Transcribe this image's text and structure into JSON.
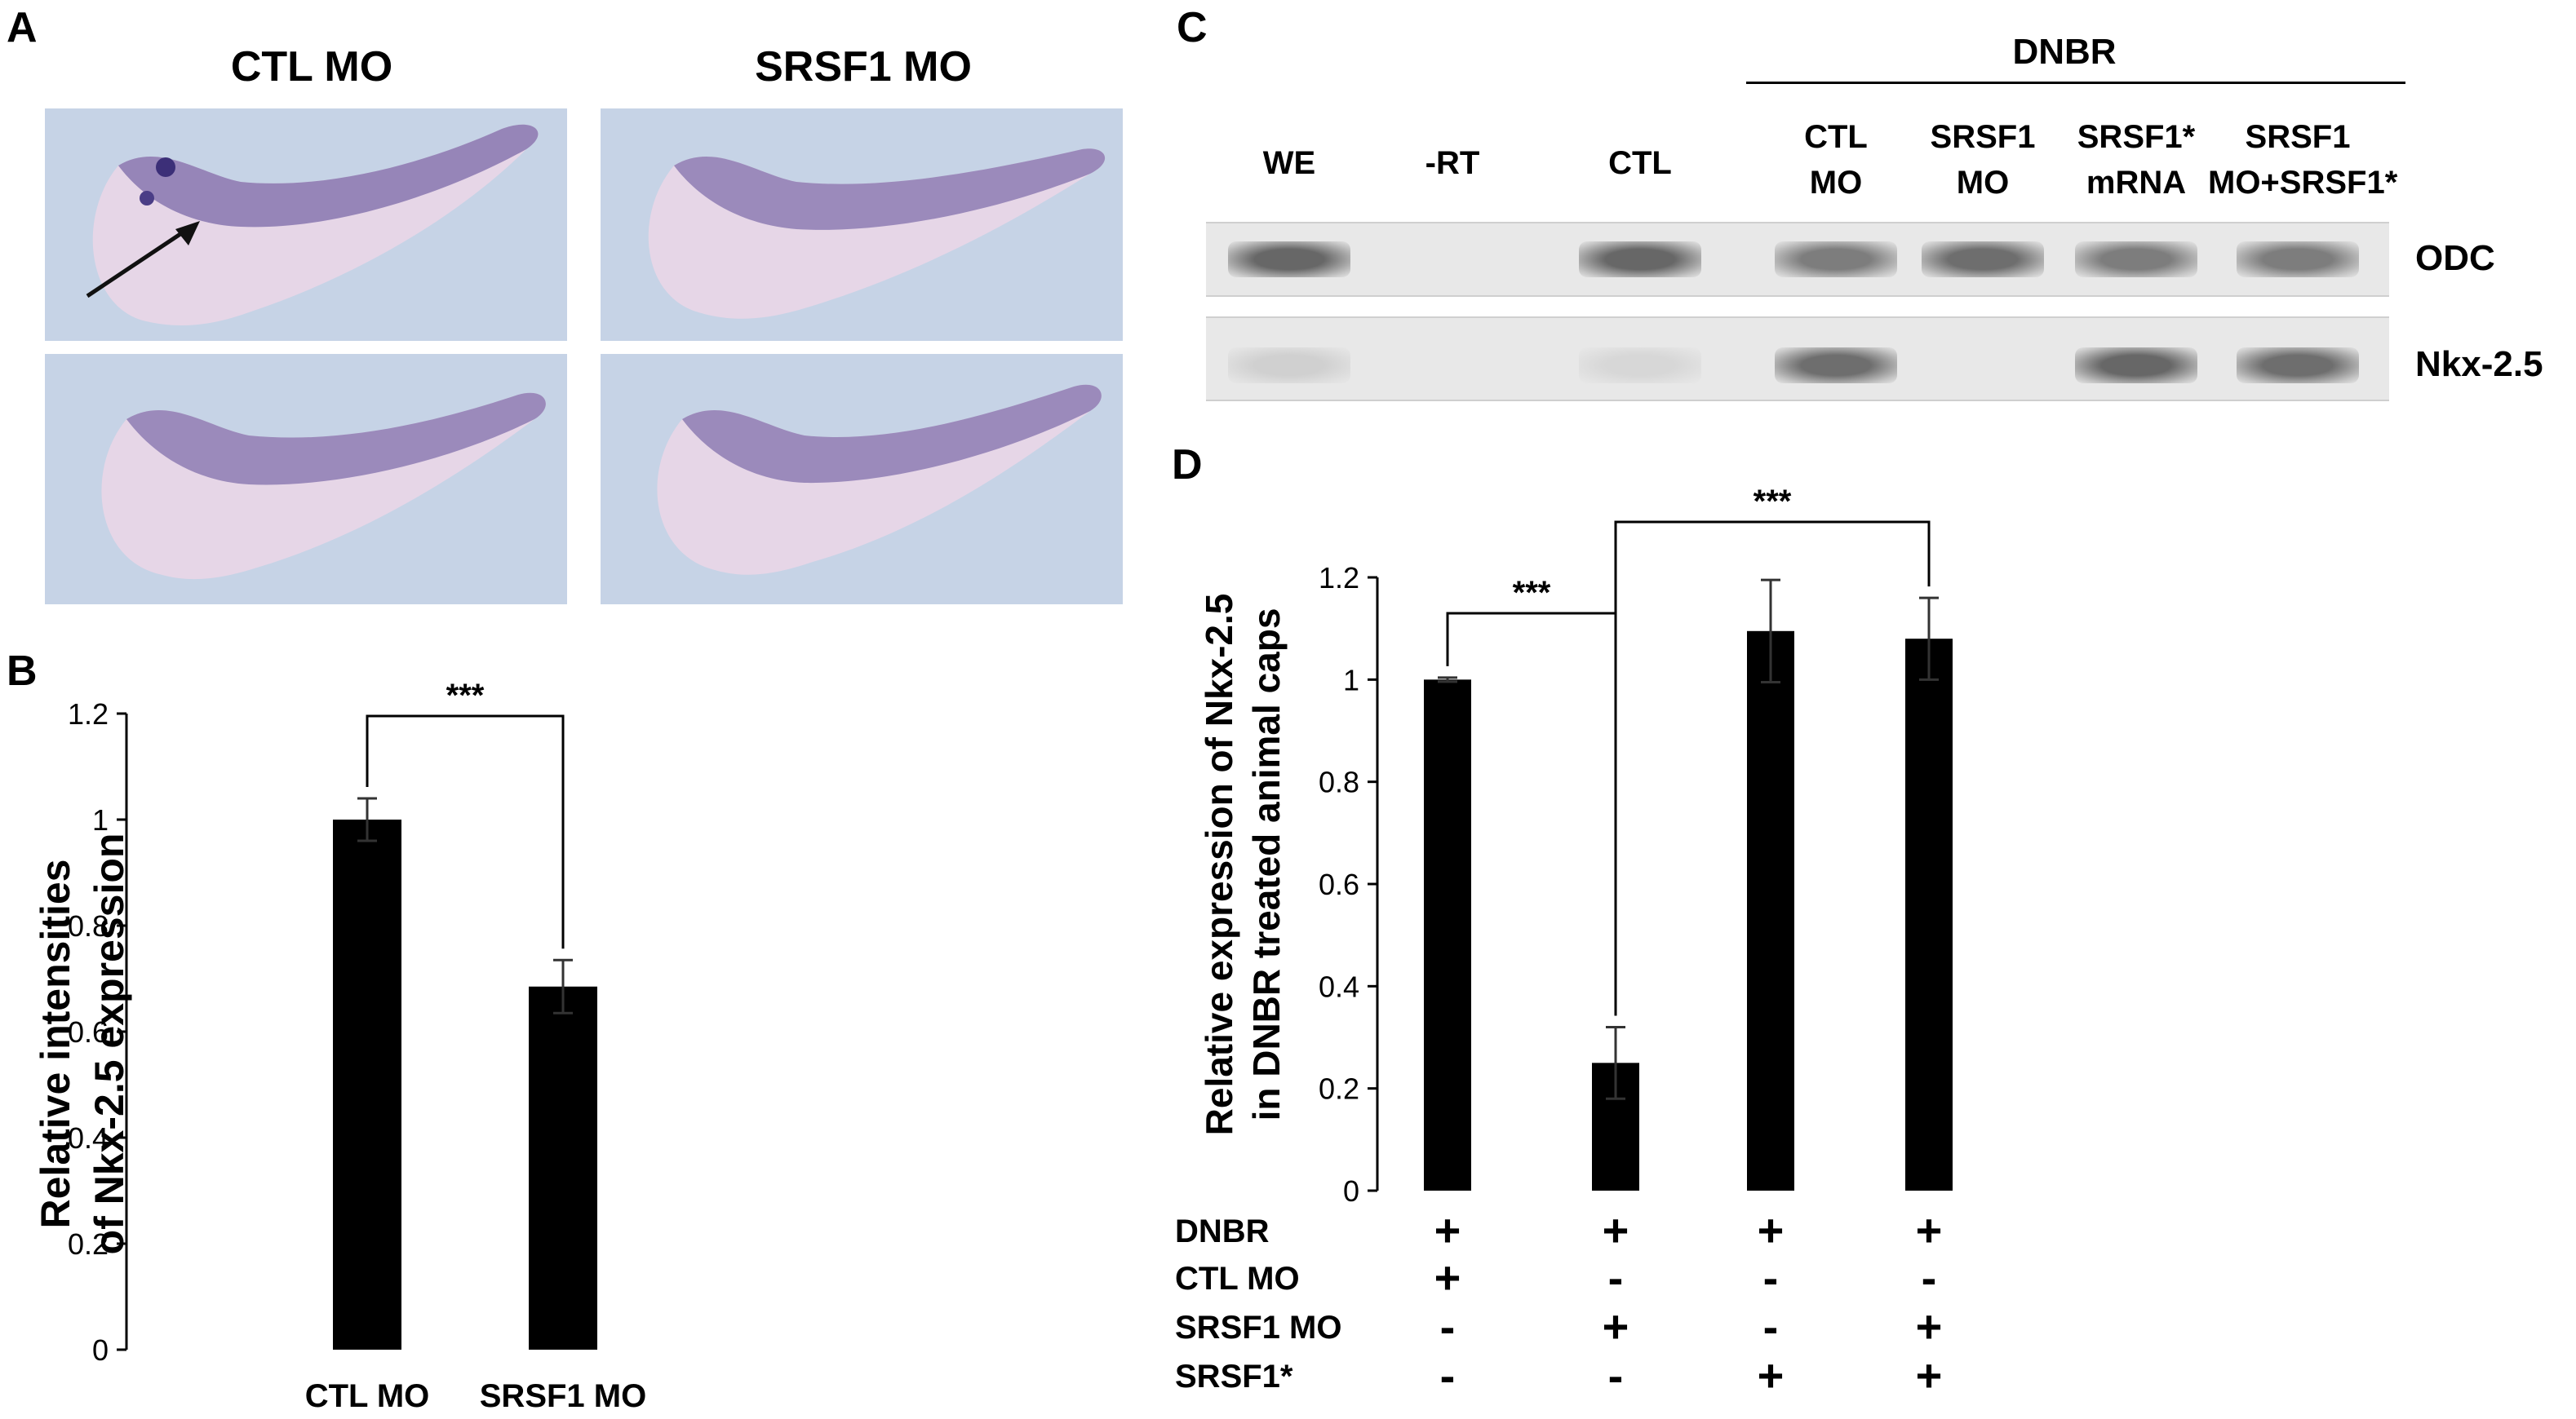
{
  "panels": {
    "A": {
      "letter": "A",
      "titles": [
        "CTL MO",
        "SRSF1 MO"
      ]
    },
    "B": {
      "letter": "B"
    },
    "C": {
      "letter": "C",
      "group_label": "DNBR",
      "lanes": [
        {
          "line1": "WE",
          "line2": ""
        },
        {
          "line1": "-RT",
          "line2": ""
        },
        {
          "line1": "CTL",
          "line2": ""
        },
        {
          "line1": "CTL",
          "line2": "MO"
        },
        {
          "line1": "SRSF1",
          "line2": "MO"
        },
        {
          "line1": "SRSF1*",
          "line2": "mRNA"
        },
        {
          "line1": "SRSF1",
          "line2": "MO+SRSF1*"
        }
      ],
      "genes": [
        "ODC",
        "Nkx-2.5"
      ],
      "band_intensity": {
        "ODC": [
          0.85,
          0.0,
          0.85,
          0.7,
          0.8,
          0.7,
          0.7
        ],
        "Nkx-2.5": [
          0.15,
          0.0,
          0.1,
          0.8,
          0.0,
          0.85,
          0.8
        ]
      }
    },
    "D": {
      "letter": "D",
      "table": {
        "rows": [
          {
            "label": "DNBR",
            "signs": [
              "+",
              "+",
              "+",
              "+"
            ]
          },
          {
            "label": "CTL MO",
            "signs": [
              "+",
              "-",
              "-",
              "-"
            ]
          },
          {
            "label": "SRSF1 MO",
            "signs": [
              "-",
              "+",
              "-",
              "+"
            ]
          },
          {
            "label": "SRSF1*",
            "signs": [
              "-",
              "-",
              "+",
              "+"
            ]
          }
        ]
      }
    }
  },
  "chart_data": [
    {
      "id": "B",
      "type": "bar",
      "categories": [
        "CTL MO",
        "SRSF1 MO"
      ],
      "values": [
        1.0,
        0.685
      ],
      "errors": [
        0.04,
        0.05
      ],
      "ylabel": "Relative intensities of Nkx-2.5 expression",
      "ylim": [
        0,
        1.2
      ],
      "yticks": [
        "0",
        "0.2",
        "0.4",
        "0.6",
        "0.8",
        "1",
        "1.2"
      ],
      "significance": [
        {
          "between": [
            0,
            1
          ],
          "label": "***"
        }
      ],
      "bar_color": "#000000"
    },
    {
      "id": "D",
      "type": "bar",
      "categories": [
        "",
        "",
        "",
        ""
      ],
      "values": [
        1.0,
        0.25,
        1.095,
        1.08
      ],
      "errors": [
        0.004,
        0.07,
        0.1,
        0.08
      ],
      "ylabel": "Relative expression of Nkx-2.5 in DNBR treated animal caps",
      "ylim": [
        0,
        1.2
      ],
      "yticks": [
        "0",
        "0.2",
        "0.4",
        "0.6",
        "0.8",
        "1",
        "1.2"
      ],
      "significance": [
        {
          "between": [
            0,
            1
          ],
          "label": "***"
        },
        {
          "between": [
            1,
            3
          ],
          "label": "***"
        }
      ],
      "bar_color": "#000000"
    }
  ]
}
